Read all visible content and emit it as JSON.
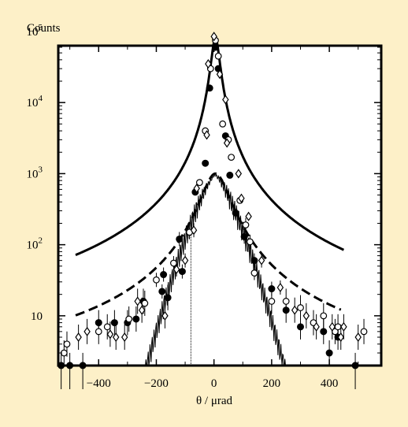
{
  "chart_data": {
    "type": "scatter",
    "title": "",
    "xlabel": "θ / μrad",
    "ylabel": "Counts",
    "xlim": [
      -540,
      580
    ],
    "ylim_log10": [
      0.3,
      4.8
    ],
    "y_scale": "log",
    "grid": false,
    "legend": "none",
    "x_ticks": [
      -400,
      -200,
      0,
      200,
      400
    ],
    "x_tick_labels": [
      "−400",
      "−200",
      "0",
      "200",
      "400"
    ],
    "y_ticks": [
      10,
      100,
      1000,
      10000,
      100000
    ],
    "y_tick_bases": [
      "10",
      "10",
      "10",
      "10",
      "10"
    ],
    "y_tick_exponents": [
      "",
      "2",
      "3",
      "4",
      "5"
    ],
    "series": [
      {
        "marker": "filled-circle",
        "color": "#000000",
        "points": [
          [
            -530,
            2
          ],
          [
            -500,
            2
          ],
          [
            -455,
            2
          ],
          [
            -400,
            8
          ],
          [
            -345,
            8
          ],
          [
            -300,
            8
          ],
          [
            -270,
            9
          ],
          [
            -245,
            16
          ],
          [
            -180,
            22
          ],
          [
            -175,
            38
          ],
          [
            -160,
            18
          ],
          [
            -120,
            120
          ],
          [
            -110,
            42
          ],
          [
            -65,
            550
          ],
          [
            -30,
            1400
          ],
          [
            -15,
            16000
          ],
          [
            5,
            60000
          ],
          [
            15,
            30000
          ],
          [
            40,
            3400
          ],
          [
            55,
            950
          ],
          [
            75,
            280
          ],
          [
            105,
            130
          ],
          [
            140,
            60
          ],
          [
            200,
            24
          ],
          [
            250,
            12
          ],
          [
            300,
            7
          ],
          [
            380,
            6
          ],
          [
            400,
            3
          ],
          [
            430,
            5
          ],
          [
            490,
            2
          ]
        ]
      },
      {
        "marker": "open-circle",
        "color": "#000000",
        "points": [
          [
            -520,
            3
          ],
          [
            -510,
            4
          ],
          [
            -400,
            6
          ],
          [
            -370,
            7
          ],
          [
            -295,
            9
          ],
          [
            -240,
            15
          ],
          [
            -200,
            32
          ],
          [
            -140,
            55
          ],
          [
            -85,
            150
          ],
          [
            -50,
            750
          ],
          [
            -30,
            4000
          ],
          [
            -12,
            30000
          ],
          [
            5,
            75000
          ],
          [
            15,
            45000
          ],
          [
            30,
            5000
          ],
          [
            50,
            3000
          ],
          [
            60,
            1700
          ],
          [
            90,
            420
          ],
          [
            110,
            190
          ],
          [
            125,
            110
          ],
          [
            140,
            40
          ],
          [
            200,
            16
          ],
          [
            250,
            16
          ],
          [
            300,
            13
          ],
          [
            345,
            8
          ],
          [
            380,
            10
          ],
          [
            420,
            6
          ],
          [
            430,
            7
          ],
          [
            520,
            6
          ]
        ]
      },
      {
        "marker": "open-diamond",
        "color": "#000000",
        "points": [
          [
            -470,
            5
          ],
          [
            -440,
            6
          ],
          [
            -360,
            5.5
          ],
          [
            -340,
            5
          ],
          [
            -310,
            5
          ],
          [
            -265,
            16
          ],
          [
            -250,
            12
          ],
          [
            -170,
            10
          ],
          [
            -130,
            45
          ],
          [
            -100,
            60
          ],
          [
            -70,
            160
          ],
          [
            -60,
            620
          ],
          [
            -25,
            3500
          ],
          [
            -20,
            35000
          ],
          [
            0,
            85000
          ],
          [
            20,
            25000
          ],
          [
            40,
            11000
          ],
          [
            45,
            2700
          ],
          [
            85,
            1000
          ],
          [
            95,
            450
          ],
          [
            120,
            250
          ],
          [
            165,
            60
          ],
          [
            230,
            25
          ],
          [
            280,
            12
          ],
          [
            320,
            10
          ],
          [
            355,
            7
          ],
          [
            410,
            7
          ],
          [
            440,
            5
          ],
          [
            450,
            7
          ],
          [
            500,
            5
          ]
        ]
      }
    ],
    "curves": [
      {
        "style": "thick-solid"
      },
      {
        "style": "thick-dashed"
      },
      {
        "style": "thin-solid"
      }
    ],
    "annotations": [
      {
        "type": "vertical-line",
        "x": -80,
        "style": "thin-dashed"
      }
    ]
  }
}
